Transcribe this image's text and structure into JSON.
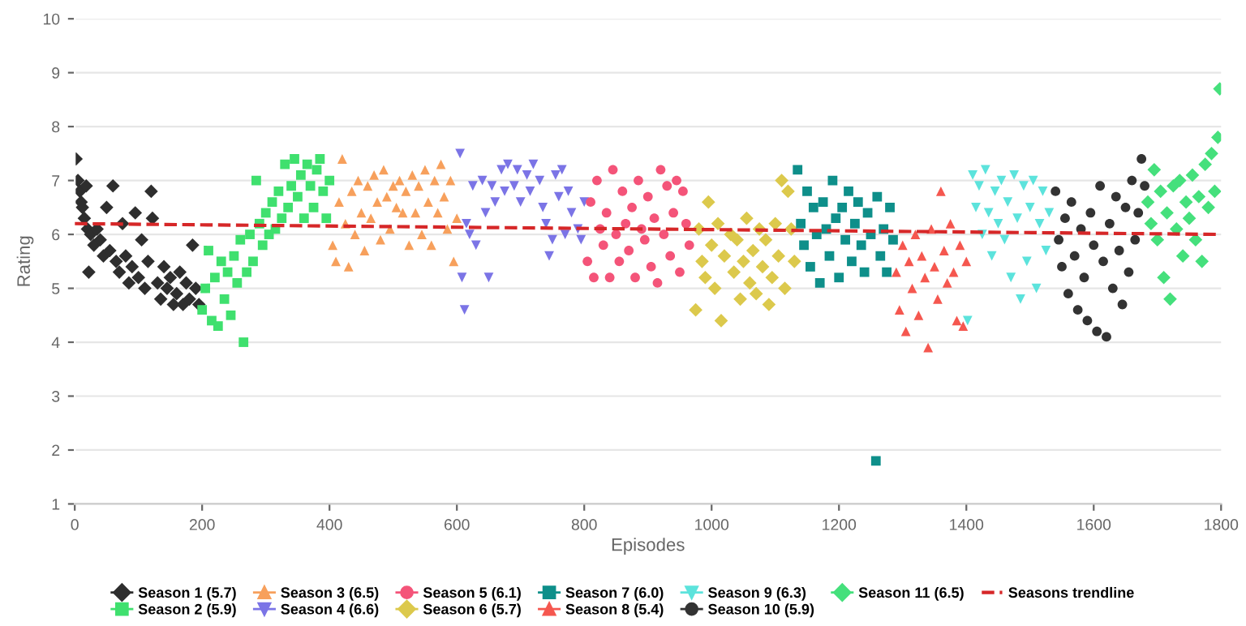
{
  "chart_data": {
    "type": "scatter",
    "xlabel": "Episodes",
    "ylabel": "Rating",
    "xlim": [
      0,
      1800
    ],
    "ylim": [
      1,
      10
    ],
    "xticks": [
      0,
      200,
      400,
      600,
      800,
      1000,
      1200,
      1400,
      1600,
      1800
    ],
    "yticks": [
      1,
      2,
      3,
      4,
      5,
      6,
      7,
      8,
      9,
      10
    ],
    "grid": "y",
    "legend": "bottom",
    "series": [
      {
        "name": "Season 1 (5.7)",
        "color": "#2e2e2e",
        "marker": "diamond",
        "x": [
          2,
          5,
          8,
          10,
          12,
          15,
          18,
          20,
          22,
          25,
          30,
          35,
          40,
          45,
          50,
          55,
          60,
          65,
          70,
          75,
          80,
          85,
          90,
          95,
          100,
          105,
          110,
          115,
          120,
          122,
          130,
          135,
          140,
          145,
          150,
          155,
          160,
          165,
          170,
          175,
          180,
          185,
          190,
          195
        ],
        "values": [
          7.4,
          7.0,
          6.8,
          6.6,
          6.5,
          6.3,
          6.9,
          6.1,
          5.3,
          6.0,
          5.8,
          6.1,
          5.9,
          5.6,
          6.5,
          5.7,
          6.9,
          5.5,
          5.3,
          6.2,
          5.6,
          5.1,
          5.4,
          6.4,
          5.2,
          5.9,
          5.0,
          5.5,
          6.8,
          6.3,
          5.1,
          4.8,
          5.4,
          5.0,
          5.2,
          4.7,
          4.9,
          5.3,
          4.7,
          5.1,
          4.8,
          5.8,
          5.0,
          4.7
        ]
      },
      {
        "name": "Season 2 (5.9)",
        "color": "#3fe06e",
        "marker": "square",
        "x": [
          200,
          205,
          210,
          215,
          220,
          225,
          230,
          235,
          240,
          245,
          250,
          255,
          260,
          265,
          270,
          275,
          280,
          285,
          290,
          295,
          300,
          305,
          310,
          315,
          320,
          325,
          330,
          335,
          340,
          345,
          350,
          355,
          360,
          365,
          370,
          375,
          380,
          385,
          390,
          395,
          400
        ],
        "values": [
          4.6,
          5.0,
          5.7,
          4.4,
          5.2,
          4.3,
          5.5,
          4.8,
          5.3,
          4.5,
          5.6,
          5.1,
          5.9,
          4.0,
          5.3,
          6.0,
          5.5,
          7.0,
          6.2,
          5.8,
          6.4,
          6.0,
          6.6,
          6.1,
          6.8,
          6.3,
          7.3,
          6.5,
          6.9,
          7.4,
          6.7,
          7.1,
          6.3,
          7.3,
          6.9,
          6.5,
          7.2,
          7.4,
          6.8,
          6.3,
          7.0
        ]
      },
      {
        "name": "Season 3 (6.5)",
        "color": "#f7a05c",
        "marker": "triangle",
        "x": [
          405,
          410,
          415,
          420,
          425,
          430,
          435,
          440,
          445,
          450,
          455,
          460,
          465,
          470,
          475,
          480,
          485,
          490,
          495,
          500,
          505,
          510,
          515,
          520,
          525,
          530,
          535,
          540,
          545,
          550,
          555,
          560,
          565,
          570,
          575,
          580,
          585,
          590,
          595,
          600
        ],
        "values": [
          5.8,
          5.5,
          6.6,
          7.4,
          6.2,
          5.4,
          6.8,
          6.0,
          7.0,
          6.4,
          5.7,
          6.9,
          6.3,
          7.1,
          6.6,
          5.9,
          7.2,
          6.7,
          6.1,
          6.9,
          6.5,
          7.0,
          6.4,
          6.8,
          5.8,
          7.1,
          6.4,
          6.9,
          6.0,
          7.2,
          6.6,
          5.8,
          7.0,
          6.4,
          7.3,
          6.7,
          6.1,
          7.0,
          5.5,
          6.3
        ]
      },
      {
        "name": "Season 4 (6.6)",
        "color": "#7b74e6",
        "marker": "triangle_down",
        "x": [
          605,
          608,
          612,
          615,
          620,
          625,
          630,
          640,
          645,
          650,
          655,
          660,
          670,
          675,
          680,
          690,
          695,
          700,
          710,
          715,
          720,
          730,
          735,
          740,
          745,
          750,
          755,
          760,
          765,
          770,
          775,
          780,
          790,
          795,
          800
        ],
        "values": [
          7.5,
          5.2,
          4.6,
          6.2,
          6.0,
          6.9,
          5.8,
          7.0,
          6.4,
          5.2,
          6.9,
          6.6,
          7.2,
          6.8,
          7.3,
          6.9,
          7.2,
          6.6,
          7.1,
          6.8,
          7.3,
          7.0,
          6.5,
          6.2,
          5.6,
          5.9,
          7.1,
          6.7,
          7.2,
          6.0,
          6.8,
          6.4,
          6.1,
          5.9,
          6.6
        ]
      },
      {
        "name": "Season 5 (6.1)",
        "color": "#f45479",
        "marker": "circle",
        "x": [
          805,
          810,
          815,
          820,
          825,
          830,
          835,
          840,
          845,
          850,
          855,
          860,
          865,
          870,
          875,
          880,
          885,
          890,
          895,
          900,
          905,
          910,
          915,
          920,
          925,
          930,
          935,
          940,
          945,
          950,
          955,
          960,
          965
        ],
        "values": [
          5.5,
          6.6,
          5.2,
          7.0,
          6.1,
          5.8,
          6.4,
          5.2,
          7.2,
          6.0,
          5.5,
          6.8,
          6.2,
          5.7,
          6.5,
          5.2,
          7.0,
          6.1,
          5.9,
          6.7,
          5.4,
          6.3,
          5.1,
          7.2,
          6.0,
          6.9,
          5.6,
          6.4,
          7.0,
          5.3,
          6.8,
          6.2,
          5.8
        ]
      },
      {
        "name": "Season 6 (5.7)",
        "color": "#dcc94c",
        "marker": "diamond",
        "x": [
          975,
          980,
          985,
          990,
          995,
          1000,
          1005,
          1010,
          1015,
          1020,
          1030,
          1035,
          1040,
          1045,
          1050,
          1055,
          1060,
          1065,
          1070,
          1075,
          1080,
          1085,
          1090,
          1095,
          1100,
          1105,
          1110,
          1115,
          1120,
          1125,
          1130
        ],
        "values": [
          4.6,
          6.1,
          5.5,
          5.2,
          6.6,
          5.8,
          5.0,
          6.2,
          4.4,
          5.6,
          6.0,
          5.3,
          5.9,
          4.8,
          5.5,
          6.3,
          5.1,
          5.7,
          4.9,
          6.1,
          5.4,
          5.9,
          4.7,
          5.2,
          6.2,
          5.6,
          7.0,
          5.0,
          6.8,
          6.1,
          5.5
        ]
      },
      {
        "name": "Season 7 (6.0)",
        "color": "#0e8f8a",
        "marker": "square",
        "x": [
          1135,
          1140,
          1145,
          1150,
          1155,
          1160,
          1165,
          1170,
          1175,
          1180,
          1185,
          1190,
          1195,
          1200,
          1205,
          1210,
          1215,
          1220,
          1225,
          1230,
          1235,
          1240,
          1245,
          1250,
          1258,
          1260,
          1265,
          1270,
          1275,
          1280,
          1285
        ],
        "values": [
          7.2,
          6.2,
          5.8,
          6.8,
          5.4,
          6.5,
          6.0,
          5.1,
          6.6,
          6.1,
          5.6,
          7.0,
          6.3,
          5.2,
          6.5,
          5.9,
          6.8,
          5.5,
          6.2,
          6.6,
          5.8,
          5.3,
          6.4,
          6.0,
          1.8,
          6.7,
          5.6,
          6.1,
          5.3,
          6.5,
          5.9
        ]
      },
      {
        "name": "Season 8 (5.4)",
        "color": "#f5574f",
        "marker": "triangle",
        "x": [
          1290,
          1295,
          1300,
          1305,
          1310,
          1315,
          1320,
          1325,
          1330,
          1335,
          1340,
          1345,
          1350,
          1355,
          1360,
          1365,
          1370,
          1375,
          1380,
          1385,
          1390,
          1395,
          1400
        ],
        "values": [
          5.3,
          4.6,
          5.8,
          4.2,
          5.5,
          5.0,
          6.0,
          4.5,
          5.6,
          5.2,
          3.9,
          6.1,
          5.4,
          4.8,
          6.8,
          5.7,
          5.1,
          6.2,
          5.3,
          4.4,
          5.8,
          4.3,
          5.5
        ]
      },
      {
        "name": "Season 9 (6.3)",
        "color": "#5ce3dc",
        "marker": "triangle_down",
        "x": [
          1402,
          1410,
          1415,
          1420,
          1425,
          1430,
          1435,
          1440,
          1445,
          1450,
          1455,
          1460,
          1465,
          1470,
          1475,
          1480,
          1485,
          1490,
          1495,
          1500,
          1505,
          1510,
          1515,
          1520,
          1525,
          1530
        ],
        "values": [
          4.4,
          7.1,
          6.5,
          6.9,
          6.0,
          7.2,
          6.4,
          5.6,
          6.8,
          6.2,
          7.0,
          5.9,
          6.6,
          5.2,
          7.1,
          6.3,
          4.8,
          6.9,
          5.5,
          6.5,
          7.0,
          5.0,
          6.2,
          6.8,
          5.7,
          6.4
        ]
      },
      {
        "name": "Season 10 (5.9)",
        "color": "#333333",
        "marker": "circle",
        "x": [
          1540,
          1545,
          1550,
          1555,
          1560,
          1565,
          1570,
          1575,
          1580,
          1585,
          1590,
          1595,
          1600,
          1605,
          1610,
          1615,
          1620,
          1625,
          1630,
          1635,
          1640,
          1645,
          1650,
          1655,
          1660,
          1665,
          1670,
          1675,
          1680
        ],
        "values": [
          6.8,
          5.9,
          5.4,
          6.3,
          4.9,
          6.6,
          5.6,
          4.6,
          6.1,
          5.2,
          4.4,
          6.4,
          5.8,
          4.2,
          6.9,
          5.5,
          4.1,
          6.2,
          5.0,
          6.7,
          5.7,
          4.7,
          6.5,
          5.3,
          7.0,
          5.9,
          6.4,
          7.4,
          6.9
        ]
      },
      {
        "name": "Season 11 (6.5)",
        "color": "#45e07c",
        "marker": "diamond",
        "x": [
          1685,
          1690,
          1695,
          1700,
          1705,
          1710,
          1715,
          1720,
          1725,
          1730,
          1735,
          1740,
          1745,
          1750,
          1755,
          1760,
          1765,
          1770,
          1775,
          1780,
          1785,
          1790,
          1795,
          1798
        ],
        "values": [
          6.6,
          6.2,
          7.2,
          5.9,
          6.8,
          5.2,
          6.4,
          4.8,
          6.9,
          6.1,
          7.0,
          5.6,
          6.6,
          6.3,
          7.1,
          5.9,
          6.7,
          5.5,
          7.3,
          6.5,
          7.5,
          6.8,
          7.8,
          8.7
        ]
      },
      {
        "name": "Seasons trendline",
        "type": "line",
        "color": "#d62728",
        "line_style": "dashed",
        "marker": "none",
        "x": [
          0,
          1800
        ],
        "values": [
          6.2,
          6.0
        ]
      }
    ]
  }
}
